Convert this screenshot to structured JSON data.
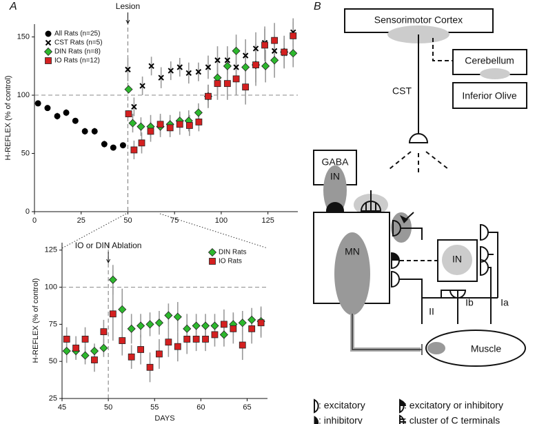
{
  "panel_labels": [
    "A",
    "B"
  ],
  "chart_data": [
    {
      "type": "scatter",
      "ylabel": "H-REFLEX (% of control)",
      "xlim": [
        0,
        141
      ],
      "xticks": [
        0,
        25,
        50,
        75,
        100,
        125
      ],
      "ylim": [
        0,
        161
      ],
      "yticks": [
        0,
        50,
        100,
        150
      ],
      "hline": 100,
      "vline": 50,
      "annotation": "Lesion",
      "legend": "upper left",
      "grid": false,
      "series": [
        {
          "name": "All Rats (n=25)",
          "marker": "circle",
          "color": "#000000",
          "x": [
            1.9,
            7,
            12.2,
            17,
            21.9,
            27,
            32.2,
            37.4,
            42.2,
            47.4
          ],
          "values": [
            93,
            89,
            82,
            85,
            78,
            69,
            69,
            58,
            55,
            57
          ],
          "errors": [
            2,
            2,
            3,
            3,
            2,
            3,
            3,
            3,
            2,
            2
          ]
        },
        {
          "name": "CST Rats (n=5)",
          "marker": "x",
          "color": "#000000",
          "x": [
            50,
            53.3,
            57.8,
            62.6,
            67.8,
            73,
            77.8,
            82.6,
            87.8,
            93,
            98,
            103.3,
            108,
            113,
            118.5,
            123.3,
            128.5,
            133.7,
            138.5
          ],
          "values": [
            122,
            90,
            108,
            125,
            115,
            121,
            124,
            119,
            120,
            124,
            130,
            130,
            124,
            134,
            140,
            145,
            138,
            136,
            154
          ],
          "errors": [
            10,
            8,
            8,
            8,
            9,
            8,
            8,
            9,
            8,
            10,
            12,
            12,
            12,
            14,
            14,
            14,
            14,
            12,
            12
          ]
        },
        {
          "name": "DIN Rats (n=8)",
          "marker": "diamond",
          "color": "#2db82d",
          "x": [
            50.4,
            52.6,
            57,
            62.2,
            67.4,
            72.6,
            77.8,
            82.6,
            87.8,
            93,
            98,
            103.3,
            108,
            113,
            118.5,
            123.7,
            128.5,
            133.7,
            138.5
          ],
          "values": [
            105,
            76,
            73,
            73,
            73,
            75,
            78,
            78,
            85,
            99,
            115,
            125,
            138,
            124,
            126,
            125,
            130,
            137,
            136
          ],
          "errors": [
            3,
            8,
            8,
            10,
            9,
            8,
            8,
            9,
            8,
            10,
            15,
            12,
            14,
            15,
            18,
            14,
            15,
            14,
            12
          ]
        },
        {
          "name": "IO Rats (n=12)",
          "marker": "square",
          "color": "#d42020",
          "x": [
            50.4,
            53.3,
            57.4,
            62.2,
            67.4,
            72.6,
            77.8,
            83,
            88,
            93,
            98,
            103.3,
            108,
            113,
            118.5,
            123.3,
            128.5,
            133.7,
            138.5
          ],
          "values": [
            84,
            53,
            59,
            69,
            75,
            72,
            75,
            74,
            77,
            99,
            110,
            110,
            114,
            107,
            126,
            143,
            147,
            137,
            151
          ],
          "errors": [
            3,
            8,
            9,
            9,
            9,
            8,
            9,
            9,
            8,
            10,
            14,
            14,
            14,
            15,
            15,
            14,
            15,
            14,
            12
          ]
        }
      ]
    },
    {
      "type": "scatter",
      "ylabel": "H-REFLEX (% of control)",
      "xlabel": "DAYS",
      "xlim": [
        45,
        67.2
      ],
      "xticks": [
        45,
        50,
        55,
        60,
        65
      ],
      "ylim": [
        25,
        130
      ],
      "yticks": [
        25,
        50,
        75,
        100,
        125
      ],
      "hline": 100,
      "vline": 50,
      "annotation": "IO or DIN Ablation",
      "legend": "upper right",
      "grid": false,
      "series": [
        {
          "name": "DIN Rats",
          "marker": "diamond",
          "color": "#2db82d",
          "x": [
            45.5,
            46.5,
            47.5,
            48.5,
            49.5,
            50.5,
            51.5,
            52.5,
            53.5,
            54.5,
            55.5,
            56.5,
            57.5,
            58.5,
            59.5,
            60.5,
            61.5,
            62.5,
            63.5,
            64.5,
            65.5,
            66.5
          ],
          "values": [
            57,
            57,
            54,
            57,
            59,
            105,
            85,
            72,
            74,
            75,
            76,
            81,
            80,
            72,
            74,
            74,
            74,
            68,
            75,
            76,
            78,
            77
          ],
          "errors": [
            8,
            5,
            6,
            5,
            6,
            10,
            14,
            10,
            8,
            8,
            8,
            8,
            10,
            10,
            8,
            8,
            8,
            8,
            8,
            8,
            8,
            10
          ]
        },
        {
          "name": "IO Rats",
          "marker": "square",
          "color": "#d42020",
          "x": [
            45.5,
            46.5,
            47.5,
            48.5,
            49.5,
            50.5,
            51.5,
            52.5,
            53.5,
            54.5,
            55.5,
            56.5,
            57.5,
            58.5,
            59.5,
            60.5,
            61.5,
            62.5,
            63.5,
            64.5,
            65.5,
            66.5
          ],
          "values": [
            65,
            59,
            65,
            51,
            70,
            82,
            64,
            53,
            58,
            46,
            55,
            63,
            60,
            65,
            65,
            65,
            68,
            75,
            72,
            61,
            72,
            76
          ],
          "errors": [
            8,
            8,
            8,
            8,
            8,
            18,
            10,
            8,
            10,
            10,
            10,
            10,
            10,
            10,
            8,
            8,
            8,
            10,
            10,
            10,
            10,
            10
          ]
        }
      ]
    }
  ],
  "diagram": {
    "nodes": {
      "cortex": "Sensorimotor Cortex",
      "cerebellum": "Cerebellum",
      "olive": "Inferior Olive",
      "gaba": "GABA",
      "gaba_in": "IN",
      "mn": "MN",
      "in": "IN",
      "muscle": "Muscle"
    },
    "pathways": {
      "cst": "CST",
      "ii": "II",
      "ib": "Ib",
      "ia": "Ia"
    },
    "legend": [
      ": excitatory",
      ": inhibitory",
      ": excitatory or inhibitory",
      ": cluster of C terminals"
    ]
  }
}
